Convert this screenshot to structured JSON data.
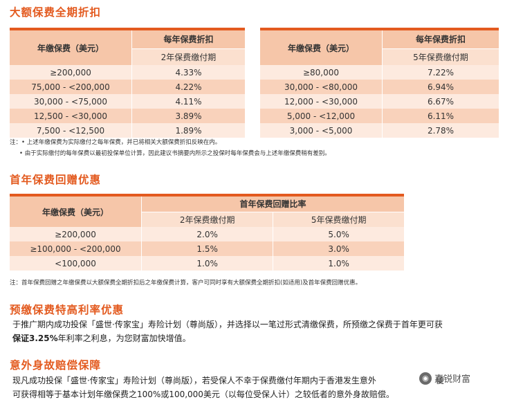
{
  "section1": {
    "title": "大额保费全期折扣",
    "left_table": {
      "col1_header": "年缴保费（美元）",
      "col2_header_top": "每年保费折扣",
      "col2_header_sub": "2年保费缴付期",
      "rows": [
        [
          "≥200,000",
          "4.33%"
        ],
        [
          "75,000 - <200,000",
          "4.22%"
        ],
        [
          "30,000 - <75,000",
          "4.11%"
        ],
        [
          "12,500 - <30,000",
          "3.89%"
        ],
        [
          "7,500 - <12,500",
          "1.89%"
        ]
      ]
    },
    "right_table": {
      "col1_header": "年缴保费（美元）",
      "col2_header_top": "每年保费折扣",
      "col2_header_sub": "5年保费缴付期",
      "rows": [
        [
          "≥80,000",
          "7.22%"
        ],
        [
          "30,000 - <80,000",
          "6.94%"
        ],
        [
          "12,000 - <30,000",
          "6.67%"
        ],
        [
          "5,000 - <12,000",
          "6.11%"
        ],
        [
          "3,000 - <5,000",
          "2.78%"
        ]
      ]
    },
    "notes": [
      "注：• 上述年缴保费为实际缴付之每年保费，并已将相关大额保费折扣反映在内。",
      "• 由于实际缴付的每年保费以最初投保单位计算，因此建议书摘要内所示之投保时每年保费会与上述年缴保费稍有差别。"
    ]
  },
  "section2": {
    "title": "首年保费回赠优惠",
    "table": {
      "col1_header": "年缴保费（美元）",
      "group_header": "首年保费回赠比率",
      "sub_headers": [
        "2年保费缴付期",
        "5年保费缴付期"
      ],
      "rows": [
        [
          "≥200,000",
          "2.0%",
          "5.0%"
        ],
        [
          "≥100,000 - <200,000",
          "1.5%",
          "3.0%"
        ],
        [
          "<100,000",
          "1.0%",
          "1.0%"
        ]
      ]
    },
    "note": "注：首年保费回赠之年缴保费以大额保费全期折扣后之年缴保费计算，客户可同时享有大额保费全期折扣(如适用)及首年保费回赠优惠。"
  },
  "section3": {
    "title": "预缴保费特高利率优惠",
    "line1": "于推广期内成功投保「盛世·传家宝」寿险计划（尊尚版），并选择以一笔过形式清缴保费，所预缴之保费于首年更可获",
    "line2_bold": "保证3.25%",
    "line2_rest": "年利率之利息，为您财富加快增值。"
  },
  "section4": {
    "title": "意外身故赔偿保障",
    "line1": "现凡成功投保「盛世·传家宝」寿险计划（尊尚版），若受保人不幸于保费缴付年期内于香港发生意外",
    "line1_tail": "便",
    "line2": "可获得相等于基本计划年缴保费之100%或100,000美元（以每位受保人计）之较低者的意外身故赔偿。"
  },
  "watermark": {
    "text": "嘉锐财富",
    "icon": "wechat-icon"
  }
}
